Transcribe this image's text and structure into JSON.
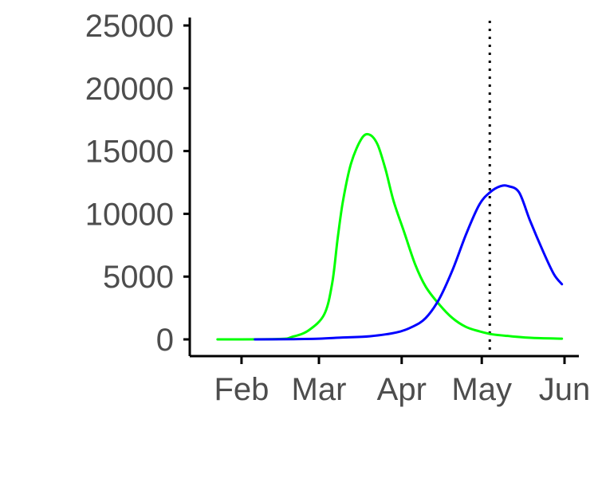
{
  "chart_data": {
    "type": "line",
    "title": "",
    "xlabel": "",
    "ylabel": "",
    "x_axis": {
      "type": "date",
      "range": [
        "2020-01-15",
        "2020-06-01"
      ],
      "ticks": [
        {
          "date": "2020-02-01",
          "label": "Feb"
        },
        {
          "date": "2020-03-01",
          "label": "Mar"
        },
        {
          "date": "2020-04-01",
          "label": "Apr"
        },
        {
          "date": "2020-05-01",
          "label": "May"
        },
        {
          "date": "2020-06-01",
          "label": "Jun"
        }
      ]
    },
    "y_axis": {
      "range": [
        0,
        25000
      ],
      "ticks": [
        {
          "value": 0,
          "label": "0"
        },
        {
          "value": 5000,
          "label": "5000"
        },
        {
          "value": 10000,
          "label": "10000"
        },
        {
          "value": 15000,
          "label": "15000"
        },
        {
          "value": 20000,
          "label": "20000"
        },
        {
          "value": 25000,
          "label": "25000"
        }
      ]
    },
    "grid": false,
    "legend": "none",
    "reference_line": {
      "axis": "x",
      "date": "2020-05-04",
      "style": "dotted",
      "color": "#000000"
    },
    "series": [
      {
        "color": "#00ff00",
        "points": [
          [
            "2020-01-23",
            0
          ],
          [
            "2020-02-15",
            30
          ],
          [
            "2020-02-20",
            200
          ],
          [
            "2020-02-26",
            700
          ],
          [
            "2020-03-03",
            2000
          ],
          [
            "2020-03-06",
            4500
          ],
          [
            "2020-03-08",
            8000
          ],
          [
            "2020-03-10",
            11000
          ],
          [
            "2020-03-13",
            14000
          ],
          [
            "2020-03-17",
            16000
          ],
          [
            "2020-03-20",
            16300
          ],
          [
            "2020-03-23",
            15500
          ],
          [
            "2020-03-26",
            13500
          ],
          [
            "2020-03-29",
            11000
          ],
          [
            "2020-04-02",
            8500
          ],
          [
            "2020-04-06",
            6000
          ],
          [
            "2020-04-10",
            4200
          ],
          [
            "2020-04-15",
            2800
          ],
          [
            "2020-04-20",
            1700
          ],
          [
            "2020-04-25",
            1000
          ],
          [
            "2020-04-30",
            650
          ],
          [
            "2020-05-05",
            400
          ],
          [
            "2020-05-12",
            250
          ],
          [
            "2020-05-20",
            120
          ],
          [
            "2020-05-31",
            60
          ]
        ]
      },
      {
        "color": "#0000ff",
        "points": [
          [
            "2020-02-06",
            0
          ],
          [
            "2020-02-20",
            20
          ],
          [
            "2020-03-01",
            60
          ],
          [
            "2020-03-10",
            150
          ],
          [
            "2020-03-20",
            250
          ],
          [
            "2020-03-30",
            550
          ],
          [
            "2020-04-05",
            1000
          ],
          [
            "2020-04-10",
            1700
          ],
          [
            "2020-04-15",
            3200
          ],
          [
            "2020-04-20",
            5500
          ],
          [
            "2020-04-25",
            8300
          ],
          [
            "2020-04-30",
            10700
          ],
          [
            "2020-05-04",
            11700
          ],
          [
            "2020-05-08",
            12200
          ],
          [
            "2020-05-11",
            12200
          ],
          [
            "2020-05-15",
            11700
          ],
          [
            "2020-05-19",
            9500
          ],
          [
            "2020-05-24",
            7000
          ],
          [
            "2020-05-28",
            5200
          ],
          [
            "2020-05-31",
            4400
          ]
        ]
      }
    ]
  }
}
